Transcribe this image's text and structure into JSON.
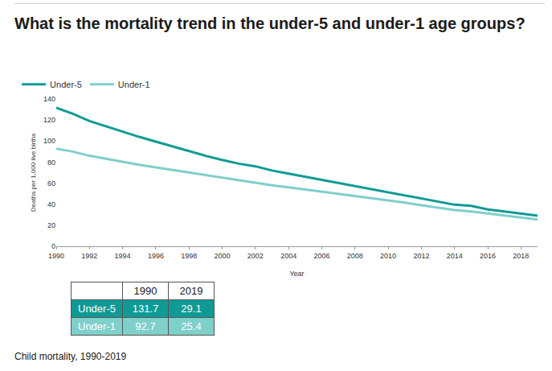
{
  "chart_data": {
    "type": "line",
    "title": "What is the mortality trend in the under-5 and under-1 age groups?",
    "x_label": "Year",
    "y_label": "Deaths per 1,000 live births",
    "x": [
      1990,
      1991,
      1992,
      1993,
      1994,
      1995,
      1996,
      1997,
      1998,
      1999,
      2000,
      2001,
      2002,
      2003,
      2004,
      2005,
      2006,
      2007,
      2008,
      2009,
      2010,
      2011,
      2012,
      2013,
      2014,
      2015,
      2016,
      2017,
      2018,
      2019
    ],
    "series": [
      {
        "name": "Under-5",
        "color": "#0f9b95",
        "values": [
          131.7,
          126,
          119,
          114,
          108.5,
          104,
          99.5,
          95,
          90,
          86,
          82,
          78.5,
          76,
          72,
          69,
          66,
          63,
          60,
          57,
          54,
          51,
          48,
          45,
          42,
          39.5,
          38.5,
          35,
          33,
          31,
          29.1
        ]
      },
      {
        "name": "Under-1",
        "color": "#7fcfcb",
        "values": [
          92.7,
          90,
          86,
          83,
          80,
          77.5,
          75,
          72.5,
          70,
          67.5,
          65,
          62.5,
          60.5,
          58,
          56,
          54,
          52,
          50,
          48,
          46,
          44,
          41.5,
          39,
          36.5,
          34.5,
          33,
          31,
          29.5,
          27.5,
          25.4
        ]
      }
    ],
    "xlim": [
      1990,
      2019
    ],
    "xticks": [
      1990,
      1992,
      1994,
      1996,
      1998,
      2000,
      2002,
      2004,
      2006,
      2008,
      2010,
      2012,
      2014,
      2016,
      2018
    ],
    "ylim": [
      0,
      140
    ],
    "yticks": [
      0,
      20,
      40,
      60,
      80,
      100,
      120,
      140
    ],
    "grid": false,
    "legend": "top-left"
  },
  "table": {
    "columns": [
      "1990",
      "2019"
    ],
    "rows": [
      {
        "label": "Under-5",
        "values": [
          131.7,
          29.1
        ]
      },
      {
        "label": "Under-1",
        "values": [
          92.7,
          25.4
        ]
      }
    ]
  },
  "caption": "Child mortality, 1990-2019"
}
